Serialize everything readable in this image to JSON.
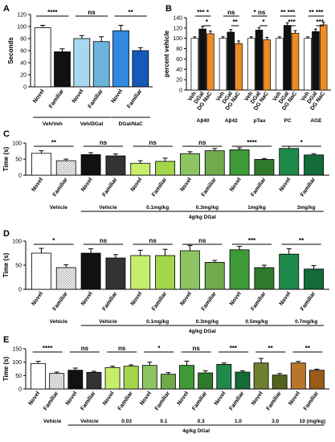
{
  "chart_data": [
    {
      "panel": "A",
      "type": "bar",
      "ylabel": "Seconds",
      "ylim": [
        0,
        120
      ],
      "yticks": [
        0,
        20,
        40,
        60,
        80,
        100,
        120
      ],
      "categories": [
        "Novel",
        "Familiar",
        "Novel",
        "Familiar",
        "Novel",
        "Familiar"
      ],
      "values": [
        98,
        58,
        80,
        75,
        93,
        60
      ],
      "errors": [
        4,
        5,
        5,
        8,
        9,
        5
      ],
      "colors": [
        "#ffffff",
        "#111111",
        "#a9d8ee",
        "#6cb4dc",
        "#2f8ae0",
        "#1659b8"
      ],
      "groups": [
        {
          "label": "Veh/Veh",
          "sig": "****"
        },
        {
          "label": "Veh/DGal",
          "sig": "ns"
        },
        {
          "label": "DGal/NaC",
          "sig": "**"
        }
      ]
    },
    {
      "panel": "B",
      "type": "bar",
      "ylabel": "percent vehicle",
      "ylim": [
        0,
        140
      ],
      "yticks": [
        0,
        20,
        40,
        60,
        80,
        100,
        120,
        140
      ],
      "series_labels": [
        "Veh",
        "DGal",
        "DG NaC"
      ],
      "groups": [
        {
          "label": "Aβ40",
          "values": [
            100,
            118,
            109
          ],
          "sig_top": "*** *",
          "sig_low": "*"
        },
        {
          "label": "Aβ42",
          "values": [
            100,
            112,
            90
          ],
          "sig_top": "ns",
          "sig_low": "**"
        },
        {
          "label": "pTau",
          "values": [
            100,
            116,
            97
          ],
          "sig_top": "* ns",
          "sig_low": "*"
        },
        {
          "label": "PC",
          "values": [
            100,
            125,
            110
          ],
          "sig_top": "** ***",
          "sig_low": "***"
        },
        {
          "label": "AGE",
          "values": [
            100,
            113,
            126
          ],
          "sig_top": "** ***",
          "sig_low": "***"
        }
      ],
      "errors": [
        3,
        5,
        5
      ],
      "colors": [
        "#ffffff",
        "#111111",
        "#f08a24"
      ]
    },
    {
      "panel": "C",
      "type": "bar",
      "ylabel": "Time (s)",
      "ylim": [
        0,
        100
      ],
      "yticks": [
        0,
        50,
        100
      ],
      "values": [
        68,
        45,
        64,
        60,
        37,
        43,
        67,
        76,
        79,
        49,
        83,
        63
      ],
      "errors": [
        8,
        5,
        6,
        6,
        8,
        10,
        6,
        7,
        6,
        3,
        7,
        4
      ],
      "colors": [
        "#ffffff",
        "#e6e6e6",
        "#111111",
        "#333333",
        "#c6ee6a",
        "#a3d64a",
        "#8cc463",
        "#6faa4b",
        "#3d9a37",
        "#2e7a2a",
        "#1f8a4c",
        "#136b38"
      ],
      "pair_labels": [
        "Novel",
        "Familiar"
      ],
      "groups": [
        {
          "label": "Vehicle",
          "sig": "**"
        },
        {
          "label": "Vehicle",
          "sig": "ns"
        },
        {
          "label": "0.1mg/kg",
          "sig": "ns"
        },
        {
          "label": "0.3mg/kg",
          "sig": "ns"
        },
        {
          "label": "1mg/kg",
          "sig": "****"
        },
        {
          "label": "3mg/kg",
          "sig": "*"
        }
      ],
      "bottom_label": "4g/kg DGal"
    },
    {
      "panel": "D",
      "type": "bar",
      "ylabel": "Time (s)",
      "ylim": [
        0,
        100
      ],
      "yticks": [
        0,
        50,
        100
      ],
      "values": [
        75,
        45,
        75,
        65,
        70,
        70,
        80,
        56,
        82,
        45,
        73,
        42
      ],
      "errors": [
        10,
        6,
        9,
        7,
        11,
        13,
        11,
        4,
        7,
        5,
        11,
        7
      ],
      "colors": [
        "#ffffff",
        "#e6e6e6",
        "#111111",
        "#333333",
        "#c6ee6a",
        "#a3d64a",
        "#8cc463",
        "#6faa4b",
        "#3d9a37",
        "#2e7a2a",
        "#1f8a4c",
        "#136b38"
      ],
      "pair_labels": [
        "Novel",
        "Familiar"
      ],
      "groups": [
        {
          "label": "Vehicle",
          "sig": "*"
        },
        {
          "label": "Vehicle",
          "sig": "ns"
        },
        {
          "label": "0.1mg/kg",
          "sig": "ns"
        },
        {
          "label": "0.3mg/kg",
          "sig": "ns"
        },
        {
          "label": "0.5mg/kg",
          "sig": "***"
        },
        {
          "label": "0.7mg/kg",
          "sig": "**"
        }
      ],
      "bottom_label": "4g/kg DGal"
    },
    {
      "panel": "E",
      "type": "bar",
      "ylabel": "Time (s)",
      "ylim": [
        0,
        150
      ],
      "yticks": [
        0,
        50,
        100,
        150
      ],
      "values": [
        95,
        58,
        70,
        62,
        80,
        85,
        88,
        55,
        88,
        60,
        92,
        63,
        97,
        52,
        97,
        70
      ],
      "errors": [
        8,
        5,
        8,
        4,
        5,
        5,
        12,
        6,
        16,
        8,
        5,
        5,
        17,
        6,
        6,
        4
      ],
      "colors": [
        "#ffffff",
        "#e6e6e6",
        "#111111",
        "#333333",
        "#c6ee6a",
        "#a3d64a",
        "#8cc463",
        "#6faa4b",
        "#3d9a37",
        "#2e7a2a",
        "#1f8a4c",
        "#136b38",
        "#6e7f2d",
        "#52621c",
        "#b8762c",
        "#9a5a1a"
      ],
      "pair_labels": [
        "Novel",
        "Familiar"
      ],
      "groups": [
        {
          "label": "Vehicle",
          "sig": "****"
        },
        {
          "label": "Vehicle",
          "sig": "ns"
        },
        {
          "label": "0.03",
          "sig": "ns"
        },
        {
          "label": "0.1",
          "sig": "*"
        },
        {
          "label": "0.3",
          "sig": "ns"
        },
        {
          "label": "1.0",
          "sig": "***"
        },
        {
          "label": "3.0",
          "sig": "**"
        },
        {
          "label": "10 (mg/kg)",
          "sig": "**"
        }
      ],
      "bottom_label": "4g/kg DGal"
    }
  ]
}
